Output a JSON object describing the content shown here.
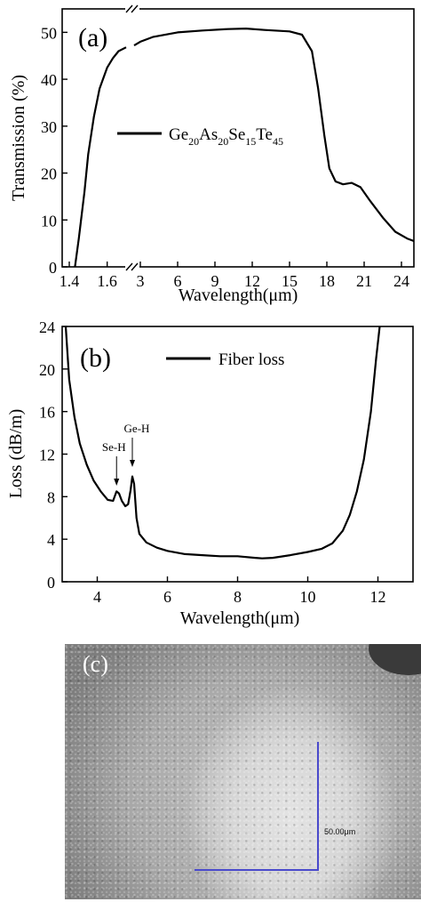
{
  "chart_data": [
    {
      "type": "line",
      "panel_label": "(a)",
      "ylabel": "Transmission (%)",
      "xlabel": "Wavelength(μm)",
      "ylim": [
        0,
        55
      ],
      "y_ticks": [
        "0",
        "10",
        "20",
        "30",
        "40",
        "50"
      ],
      "x_ticks": [
        "1.4",
        "1.6",
        "3",
        "6",
        "9",
        "12",
        "15",
        "18",
        "21",
        "24"
      ],
      "axis_break": "broken x-axis between 1.7 and 3 μm",
      "legend": {
        "position": "center-left",
        "label": "Ge",
        "subs": [
          [
            "20"
          ],
          [
            "As",
            "20"
          ],
          [
            "Se",
            "15"
          ],
          [
            "Te",
            "45"
          ]
        ]
      },
      "series": [
        {
          "name": "Ge20As20Se15Te45",
          "segment1": {
            "x": [
              1.43,
              1.45,
              1.48,
              1.5,
              1.53,
              1.56,
              1.6,
              1.63,
              1.66,
              1.7
            ],
            "y": [
              0,
              6,
              16,
              24,
              32,
              38,
              42.5,
              44.5,
              46,
              46.8
            ]
          },
          "segment2": {
            "x": [
              2.5,
              3,
              4,
              6,
              8,
              10,
              11.5,
              13,
              15,
              16,
              16.8,
              17.3,
              17.8,
              18.2,
              18.7,
              19.3,
              20,
              20.7,
              21.5,
              22.5,
              23.5,
              24.5,
              25
            ],
            "y": [
              47.2,
              48,
              49,
              50,
              50.4,
              50.7,
              50.8,
              50.5,
              50.2,
              49.5,
              46,
              38,
              28,
              21,
              18.2,
              17.6,
              17.9,
              17,
              14,
              10.5,
              7.5,
              6,
              5.5
            ]
          }
        }
      ]
    },
    {
      "type": "line",
      "panel_label": "(b)",
      "ylabel": "Loss (dB/m)",
      "xlabel": "Wavelength(μm)",
      "xlim": [
        3,
        13
      ],
      "ylim": [
        0,
        24
      ],
      "x_ticks": [
        "4",
        "6",
        "8",
        "10",
        "12"
      ],
      "y_ticks": [
        "0",
        "4",
        "8",
        "12",
        "16",
        "20",
        "24"
      ],
      "legend": {
        "position": "top-center",
        "label": "Fiber loss"
      },
      "annotations": [
        {
          "text": "Se-H",
          "x": 4.55
        },
        {
          "text": "Ge-H",
          "x": 5.0
        }
      ],
      "series": [
        {
          "name": "Fiber loss",
          "x": [
            3.1,
            3.2,
            3.35,
            3.5,
            3.7,
            3.9,
            4.1,
            4.3,
            4.45,
            4.55,
            4.62,
            4.7,
            4.8,
            4.88,
            4.95,
            5.0,
            5.05,
            5.12,
            5.2,
            5.4,
            5.7,
            6.0,
            6.5,
            7.0,
            7.5,
            8.0,
            8.5,
            8.7,
            9.0,
            9.5,
            10.0,
            10.4,
            10.7,
            11.0,
            11.2,
            11.4,
            11.6,
            11.8,
            11.95,
            12.05
          ],
          "y": [
            24,
            19,
            15.5,
            13,
            11,
            9.5,
            8.5,
            7.7,
            7.6,
            8.5,
            8.3,
            7.6,
            7.1,
            7.3,
            8.6,
            9.9,
            9.2,
            6.0,
            4.5,
            3.7,
            3.2,
            2.9,
            2.6,
            2.5,
            2.4,
            2.4,
            2.25,
            2.2,
            2.25,
            2.5,
            2.8,
            3.1,
            3.6,
            4.8,
            6.3,
            8.5,
            11.5,
            16,
            21,
            24
          ]
        }
      ]
    }
  ],
  "panel_c": {
    "label": "(c)",
    "scale_bar": "50.00μm"
  }
}
